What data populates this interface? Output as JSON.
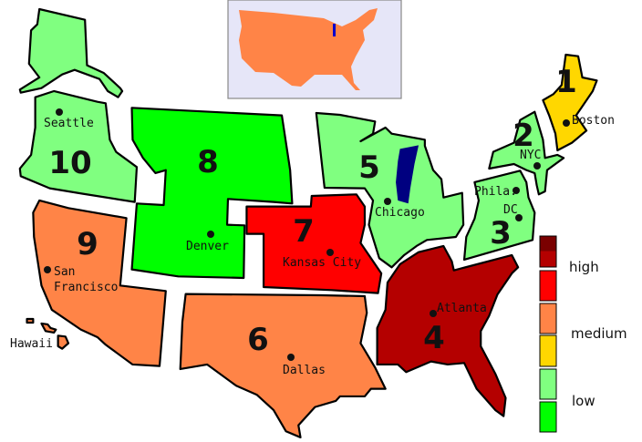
{
  "regions": [
    {
      "number": "1",
      "level": "medium",
      "color": "#ffd700"
    },
    {
      "number": "2",
      "level": "low",
      "color": "#80ff80"
    },
    {
      "number": "3",
      "level": "low",
      "color": "#80ff80"
    },
    {
      "number": "4",
      "level": "high",
      "color": "#b40000"
    },
    {
      "number": "5",
      "level": "low",
      "color": "#80ff80"
    },
    {
      "number": "6",
      "level": "medium",
      "color": "#ff8447"
    },
    {
      "number": "7",
      "level": "high",
      "color": "#ff0000"
    },
    {
      "number": "8",
      "level": "low",
      "color": "#00ff00"
    },
    {
      "number": "9",
      "level": "medium",
      "color": "#ff8447"
    },
    {
      "number": "10",
      "level": "low",
      "color": "#80ff80"
    }
  ],
  "cities": {
    "seattle": "Seattle",
    "boston": "Boston",
    "nyc": "NYC",
    "phila": "Phila.",
    "dc": "DC",
    "chicago": "Chicago",
    "denver": "Denver",
    "kansas_city": "Kansas City",
    "san_francisco_1": "San",
    "san_francisco_2": "Francisco",
    "atlanta": "Atlanta",
    "dallas": "Dallas",
    "hawaii": "Hawaii"
  },
  "inset": {
    "fill": "#ff8447",
    "background": "#e6e6f8",
    "lake": "#0000cc"
  },
  "lake_color": "#000080",
  "legend": {
    "labels": {
      "high": "high",
      "medium": "medium",
      "low": "low"
    },
    "swatches": [
      "#b40000",
      "#ff0000",
      "#ff8447",
      "#ffd700",
      "#80ff80",
      "#00ff00"
    ],
    "swatch_top_shade": "#7a0000"
  }
}
